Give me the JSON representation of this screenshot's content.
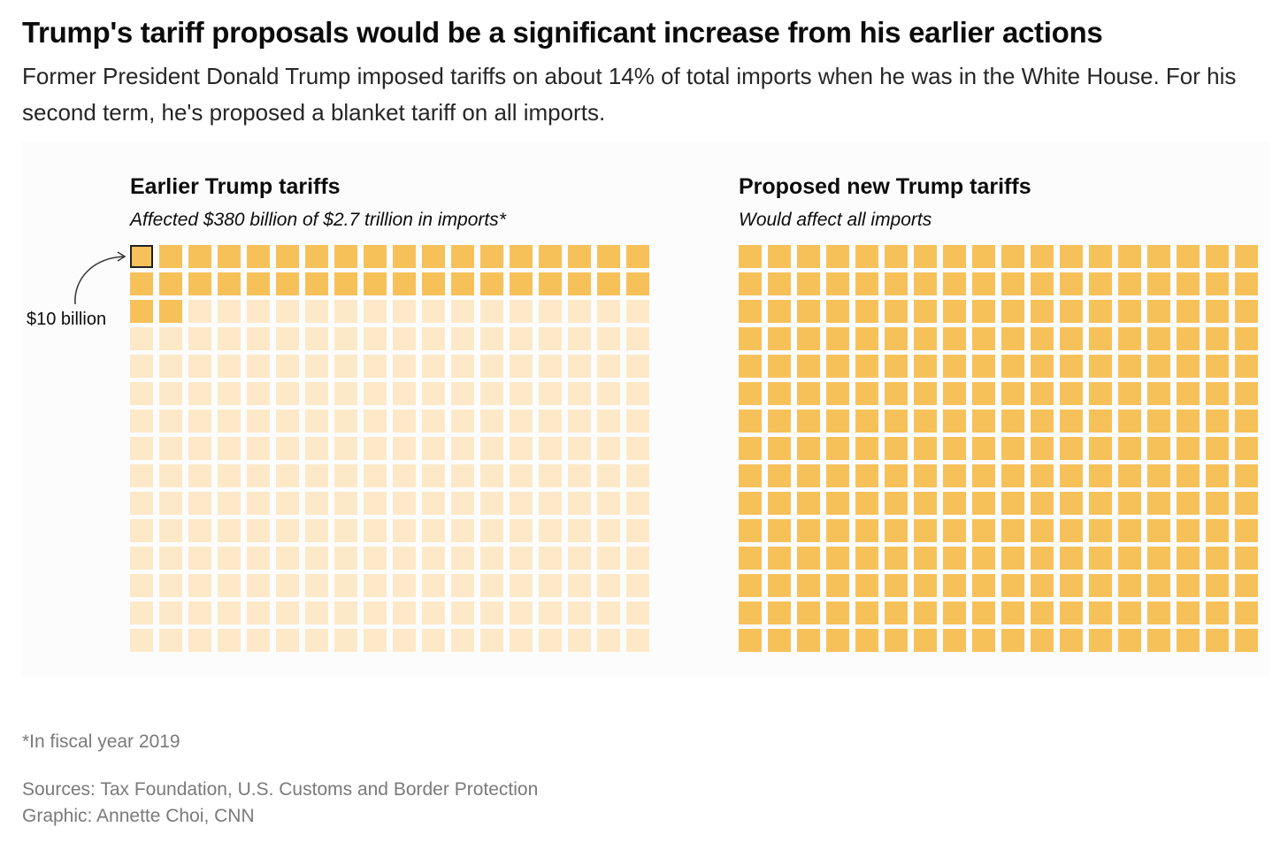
{
  "header": {
    "title": "Trump's tariff proposals would be a significant increase from his earlier actions",
    "subtitle": "Former President Donald Trump imposed tariffs on about 14% of total imports when he was in the White House. For his second term, he's proposed a blanket tariff on all imports."
  },
  "chart_data": [
    {
      "type": "waffle",
      "title": "Earlier Trump tariffs",
      "subtitle": "Affected $380 billion of $2.7 trillion in imports*",
      "columns": 18,
      "rows": 15,
      "unit_value_billion": 10,
      "total_squares": 270,
      "filled_squares": 38,
      "annotation": "$10 billion"
    },
    {
      "type": "waffle",
      "title": "Proposed new Trump tariffs",
      "subtitle": "Would affect all imports",
      "columns": 18,
      "rows": 15,
      "unit_value_billion": 10,
      "total_squares": 270,
      "filled_squares": 270
    }
  ],
  "colors": {
    "filled": "#f7c15a",
    "unfilled": "#fde9c8"
  },
  "footer": {
    "note": "*In fiscal year 2019",
    "sources": "Sources: Tax Foundation, U.S. Customs and Border Protection",
    "credit": "Graphic: Annette Choi, CNN"
  }
}
